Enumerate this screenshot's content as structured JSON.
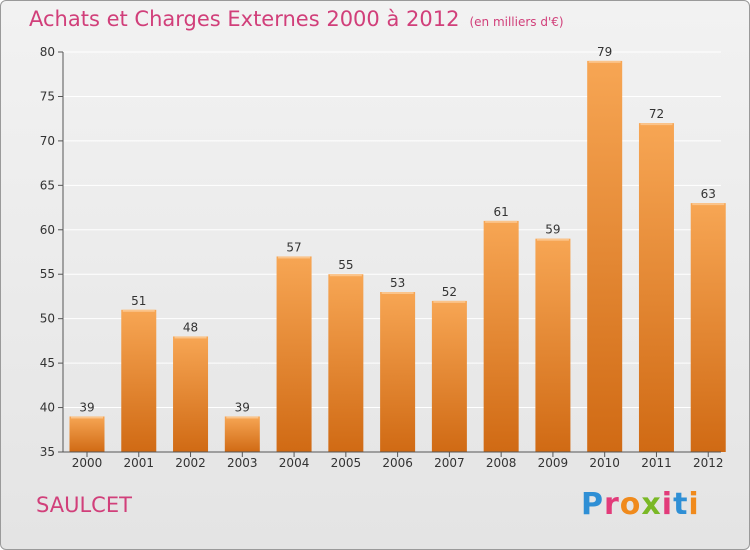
{
  "header": {
    "title": "Achats et Charges Externes 2000 à 2012",
    "unit": "(en milliers d'€)"
  },
  "footer": {
    "place": "SAULCET",
    "logo": "Proxiti"
  },
  "colors": {
    "bar_top": "#f7a654",
    "bar_bottom": "#d06a14",
    "title": "#d13f7a",
    "grid": "#ffffff"
  },
  "chart_data": {
    "type": "bar",
    "categories": [
      "2000",
      "2001",
      "2002",
      "2003",
      "2004",
      "2005",
      "2006",
      "2007",
      "2008",
      "2009",
      "2010",
      "2011",
      "2012"
    ],
    "values": [
      39,
      51,
      48,
      39,
      57,
      55,
      53,
      52,
      61,
      59,
      79,
      72,
      63
    ],
    "ylim": [
      35,
      80
    ],
    "yticks": [
      35,
      40,
      45,
      50,
      55,
      60,
      65,
      70,
      75,
      80
    ],
    "grid": true,
    "data_labels": true
  }
}
